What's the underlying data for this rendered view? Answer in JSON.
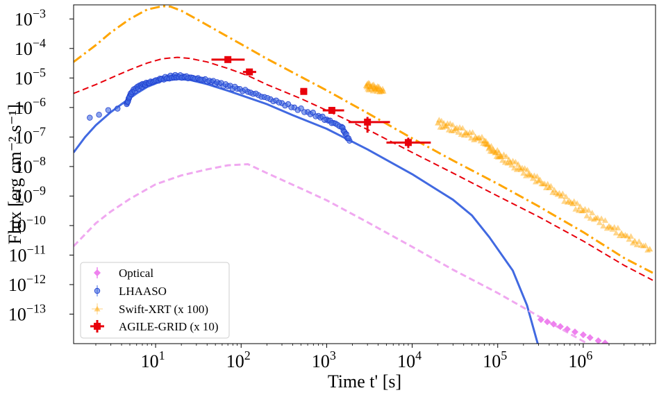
{
  "chart_data": {
    "type": "scatter",
    "xscale": "log",
    "yscale": "log",
    "xlim": [
      1.1,
      7000000
    ],
    "ylim": [
      1e-14,
      0.003
    ],
    "xlabel": "Time t' [s]",
    "ylabel": "Flux [erg cm⁻² s⁻¹]",
    "x_ticks": [
      {
        "value": 10,
        "base": "10",
        "exp": "1"
      },
      {
        "value": 100,
        "base": "10",
        "exp": "2"
      },
      {
        "value": 1000,
        "base": "10",
        "exp": "3"
      },
      {
        "value": 10000,
        "base": "10",
        "exp": "4"
      },
      {
        "value": 100000,
        "base": "10",
        "exp": "5"
      },
      {
        "value": 1000000,
        "base": "10",
        "exp": "6"
      }
    ],
    "y_ticks": [
      {
        "value": 0.001,
        "base": "10",
        "exp": "−3"
      },
      {
        "value": 0.0001,
        "base": "10",
        "exp": "−4"
      },
      {
        "value": 1e-05,
        "base": "10",
        "exp": "−5"
      },
      {
        "value": 1e-06,
        "base": "10",
        "exp": "−6"
      },
      {
        "value": 1e-07,
        "base": "10",
        "exp": "−7"
      },
      {
        "value": 1e-08,
        "base": "10",
        "exp": "−8"
      },
      {
        "value": 1e-09,
        "base": "10",
        "exp": "−9"
      },
      {
        "value": 1e-10,
        "base": "10",
        "exp": "−10"
      },
      {
        "value": 1e-11,
        "base": "10",
        "exp": "−11"
      },
      {
        "value": 1e-12,
        "base": "10",
        "exp": "−12"
      },
      {
        "value": 1e-13,
        "base": "10",
        "exp": "−13"
      }
    ],
    "legend": {
      "position": "lower-left",
      "entries": [
        {
          "label": "Optical",
          "color": "#ee82ee",
          "marker": "diamond"
        },
        {
          "label": "LHAASO",
          "color": "#4169e1",
          "marker": "circle"
        },
        {
          "label": "Swift-XRT (x 100)",
          "color": "#ffa500",
          "marker": "triangle"
        },
        {
          "label": "AGILE-GRID (x 10)",
          "color": "#e8000b",
          "marker": "square"
        }
      ]
    },
    "model_curves": [
      {
        "name": "Swift-XRT model (x 100)",
        "color": "#ffa500",
        "style": "dashdot",
        "x": [
          1.1,
          2,
          3,
          5,
          8,
          12,
          15,
          20,
          30,
          60,
          100,
          200,
          500,
          1000,
          3000,
          10000,
          30000,
          100000,
          300000,
          1000000,
          3000000,
          6500000
        ],
        "y": [
          3.5e-05,
          0.00013,
          0.00035,
          0.001,
          0.0021,
          0.0027,
          0.0026,
          0.0019,
          0.001,
          0.00032,
          0.00014,
          4.5e-05,
          1.1e-05,
          3.8e-06,
          6.5e-07,
          9e-08,
          1.6e-08,
          2.6e-09,
          4.5e-10,
          6e-11,
          8e-12,
          2.5e-12
        ]
      },
      {
        "name": "AGILE-GRID model (x 10)",
        "color": "#e8000b",
        "style": "dashed",
        "x": [
          1.1,
          2,
          3,
          5,
          8,
          12,
          18,
          25,
          40,
          70,
          120,
          200,
          500,
          1000,
          3000,
          10000,
          30000,
          100000,
          300000,
          1000000,
          3000000,
          6500000
        ],
        "y": [
          3e-06,
          6e-06,
          1e-05,
          1.9e-05,
          3.2e-05,
          4.5e-05,
          5e-05,
          4.6e-05,
          3.5e-05,
          2.1e-05,
          1.2e-05,
          6e-06,
          2e-06,
          8e-07,
          1.8e-07,
          3e-08,
          6e-09,
          1e-09,
          2e-10,
          3e-11,
          4.5e-12,
          1.4e-12
        ]
      },
      {
        "name": "LHAASO model",
        "color": "#4169e1",
        "style": "solid",
        "x": [
          1.1,
          1.5,
          2,
          3,
          4,
          6,
          8,
          12,
          18,
          25,
          40,
          70,
          100,
          200,
          400,
          1000,
          3000,
          10000,
          30000,
          50000,
          80000,
          150000,
          220000,
          300000
        ],
        "y": [
          3e-08,
          1e-07,
          2.5e-07,
          7e-07,
          1.3e-06,
          3e-06,
          5e-06,
          8e-06,
          9.2e-06,
          8.6e-06,
          6.2e-06,
          3.7e-06,
          2.6e-06,
          1.3e-06,
          5.5e-07,
          1.9e-07,
          3.8e-08,
          5.5e-09,
          7.5e-10,
          2.2e-10,
          4e-11,
          3e-12,
          2e-13,
          8e-15
        ]
      },
      {
        "name": "Optical model",
        "color": "#f0a8f0",
        "style": "dashed",
        "x": [
          1.1,
          2,
          3,
          5,
          10,
          20,
          40,
          70,
          120,
          200,
          500,
          1000,
          3000,
          10000,
          30000,
          100000,
          300000,
          1000000,
          2000000
        ],
        "y": [
          2e-11,
          1.2e-10,
          3e-10,
          8e-10,
          2.5e-09,
          5e-09,
          8e-09,
          1.1e-08,
          1.2e-08,
          6e-09,
          1.8e-09,
          7.2e-10,
          1.3e-10,
          1.9e-11,
          3.2e-12,
          5.2e-13,
          8.5e-14,
          1.2e-14,
          4e-15
        ]
      }
    ],
    "series": [
      {
        "name": "AGILE-GRID (x 10)",
        "color": "#e8000b",
        "points": [
          {
            "x": 70,
            "y": 4.2e-05,
            "xerr": [
              45,
              110
            ]
          },
          {
            "x": 125,
            "y": 1.6e-05,
            "xerr": [
              105,
              150
            ]
          },
          {
            "x": 540,
            "y": 3.5e-06,
            "xerr": [
              490,
              590
            ],
            "yerr": [
              3e-06,
              4.1e-06
            ]
          },
          {
            "x": 1150,
            "y": 8e-07,
            "xerr": [
              900,
              1600
            ],
            "yerr": [
              6.5e-07,
              9.5e-07
            ]
          },
          {
            "x": 3000,
            "y": 3.2e-07,
            "xerr": [
              1800,
              5500
            ],
            "yerr": [
              1.4e-07,
              4.8e-07
            ]
          },
          {
            "x": 9000,
            "y": 6.5e-08,
            "xerr": [
              5000,
              16500
            ],
            "yerr": [
              4.2e-08,
              9.5e-08
            ]
          }
        ]
      },
      {
        "name": "LHAASO",
        "color": "#4169e1",
        "points": [
          {
            "x": 1.7,
            "y": 4.5e-07
          },
          {
            "x": 4.6,
            "y": 1.3e-06
          },
          {
            "x": 4.8,
            "y": 1.8e-06
          },
          {
            "x": 5.0,
            "y": 2.5e-06
          },
          {
            "x": 5.4,
            "y": 3.5e-06
          },
          {
            "x": 6.0,
            "y": 4.4e-06
          },
          {
            "x": 6.6,
            "y": 5.2e-06
          },
          {
            "x": 7.2,
            "y": 5.8e-06
          },
          {
            "x": 8.0,
            "y": 6.5e-06
          },
          {
            "x": 9.0,
            "y": 7.3e-06
          },
          {
            "x": 10.5,
            "y": 8.5e-06
          },
          {
            "x": 12,
            "y": 9.5e-06
          },
          {
            "x": 14,
            "y": 1.05e-05
          },
          {
            "x": 16,
            "y": 1.12e-05
          },
          {
            "x": 18,
            "y": 1.15e-05
          },
          {
            "x": 21,
            "y": 1.12e-05
          },
          {
            "x": 25,
            "y": 1.04e-05
          },
          {
            "x": 30,
            "y": 9.5e-06
          },
          {
            "x": 36,
            "y": 8.6e-06
          },
          {
            "x": 45,
            "y": 7.4e-06
          },
          {
            "x": 55,
            "y": 6.4e-06
          },
          {
            "x": 70,
            "y": 5.3e-06
          },
          {
            "x": 90,
            "y": 4.3e-06
          },
          {
            "x": 120,
            "y": 3.4e-06
          },
          {
            "x": 160,
            "y": 2.6e-06
          },
          {
            "x": 220,
            "y": 1.9e-06
          },
          {
            "x": 300,
            "y": 1.4e-06
          },
          {
            "x": 420,
            "y": 1e-06
          },
          {
            "x": 600,
            "y": 7e-07
          },
          {
            "x": 800,
            "y": 5.2e-07
          },
          {
            "x": 1000,
            "y": 3.9e-07
          },
          {
            "x": 1200,
            "y": 3e-07
          },
          {
            "x": 1500,
            "y": 2.2e-07
          },
          {
            "x": 1650,
            "y": 1.3e-07
          },
          {
            "x": 1850,
            "y": 7.5e-08
          }
        ]
      },
      {
        "name": "Swift-XRT (x 100)",
        "color": "#ffa500",
        "points": [
          {
            "x": 2900,
            "y": 5.5e-06
          },
          {
            "x": 3200,
            "y": 5e-06
          },
          {
            "x": 3600,
            "y": 4.5e-06
          },
          {
            "x": 4000,
            "y": 4.1e-06
          },
          {
            "x": 4600,
            "y": 3.6e-06
          },
          {
            "x": 20000,
            "y": 3e-07
          },
          {
            "x": 25000,
            "y": 2.4e-07
          },
          {
            "x": 32000,
            "y": 1.9e-07
          },
          {
            "x": 42000,
            "y": 1.4e-07
          },
          {
            "x": 55000,
            "y": 1e-07
          },
          {
            "x": 70000,
            "y": 7.5e-08
          },
          {
            "x": 80000,
            "y": 4.5e-08
          },
          {
            "x": 95000,
            "y": 3e-08
          },
          {
            "x": 110000,
            "y": 2.2e-08
          },
          {
            "x": 140000,
            "y": 1.4e-08
          },
          {
            "x": 180000,
            "y": 9e-09
          },
          {
            "x": 230000,
            "y": 5.5e-09
          },
          {
            "x": 300000,
            "y": 3.3e-09
          },
          {
            "x": 400000,
            "y": 1.9e-09
          },
          {
            "x": 550000,
            "y": 1e-09
          },
          {
            "x": 750000,
            "y": 5.5e-10
          },
          {
            "x": 1000000,
            "y": 3.2e-10
          },
          {
            "x": 1400000,
            "y": 1.8e-10
          },
          {
            "x": 2000000,
            "y": 9.5e-11
          },
          {
            "x": 2800000,
            "y": 5.5e-11
          },
          {
            "x": 4000000,
            "y": 3e-11
          },
          {
            "x": 6000000,
            "y": 1.6e-11
          }
        ]
      },
      {
        "name": "Optical",
        "color": "#ee82ee",
        "points": [
          {
            "x": 320000,
            "y": 6.5e-14
          },
          {
            "x": 380000,
            "y": 5.5e-14
          },
          {
            "x": 450000,
            "y": 4.6e-14
          },
          {
            "x": 540000,
            "y": 3.8e-14
          },
          {
            "x": 650000,
            "y": 3.1e-14
          },
          {
            "x": 800000,
            "y": 2.5e-14
          },
          {
            "x": 1000000,
            "y": 2e-14
          },
          {
            "x": 1200000,
            "y": 1.6e-14
          },
          {
            "x": 1500000,
            "y": 1.25e-14
          },
          {
            "x": 1800000,
            "y": 1.05e-14
          }
        ]
      }
    ]
  }
}
